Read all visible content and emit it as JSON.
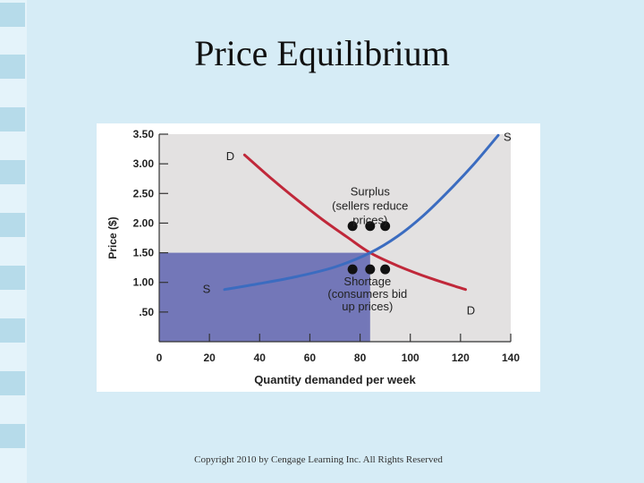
{
  "slide": {
    "title": "Price Equilibrium",
    "copyright": "Copyright 2010 by Cengage Learning Inc. All Rights Reserved"
  },
  "colors": {
    "background": "#d6ecf6",
    "sidebar_tile": "#b6dbea",
    "plot_area": "#e3e1e1",
    "shaded_region": "#7377b8",
    "demand_curve": "#c0283a",
    "supply_curve": "#3b6cc0",
    "dots": "#111111"
  },
  "chart_data": {
    "type": "line",
    "xlabel": "Quantity demanded per week",
    "ylabel": "Price ($)",
    "xlim": [
      0,
      140
    ],
    "ylim": [
      0,
      3.5
    ],
    "x_ticks": [
      0,
      20,
      40,
      60,
      80,
      100,
      120,
      140
    ],
    "x_tick_labels": [
      "0",
      "20",
      "40",
      "60",
      "80",
      "100",
      "120",
      "140"
    ],
    "y_ticks": [
      0.5,
      1.0,
      1.5,
      2.0,
      2.5,
      3.0,
      3.5
    ],
    "y_tick_labels": [
      ".50",
      "1.00",
      "1.50",
      "2.00",
      "2.50",
      "3.00",
      "3.50"
    ],
    "series": [
      {
        "name": "D",
        "color": "#c0283a",
        "points": [
          [
            34,
            3.15
          ],
          [
            45,
            2.74
          ],
          [
            55,
            2.39
          ],
          [
            65,
            2.06
          ],
          [
            75,
            1.76
          ],
          [
            84,
            1.5
          ],
          [
            95,
            1.28
          ],
          [
            108,
            1.07
          ],
          [
            122,
            0.88
          ]
        ],
        "end_labels": [
          "D",
          "D"
        ]
      },
      {
        "name": "S",
        "color": "#3b6cc0",
        "points": [
          [
            26,
            0.88
          ],
          [
            40,
            0.98
          ],
          [
            55,
            1.1
          ],
          [
            70,
            1.26
          ],
          [
            84,
            1.5
          ],
          [
            95,
            1.78
          ],
          [
            105,
            2.12
          ],
          [
            115,
            2.53
          ],
          [
            125,
            2.98
          ],
          [
            135,
            3.48
          ]
        ],
        "end_labels": [
          "S",
          "S"
        ]
      }
    ],
    "equilibrium": {
      "quantity": 84,
      "price": 1.5
    },
    "shaded_region": {
      "x": [
        0,
        84
      ],
      "y": [
        0,
        1.5
      ]
    },
    "surplus_dots": [
      [
        77,
        1.95
      ],
      [
        84,
        1.95
      ],
      [
        90,
        1.95
      ]
    ],
    "shortage_dots": [
      [
        77,
        1.22
      ],
      [
        84,
        1.22
      ],
      [
        90,
        1.22
      ]
    ],
    "annotations": [
      {
        "lines": [
          "Surplus",
          "(sellers reduce",
          "prices)"
        ]
      },
      {
        "lines": [
          "Shortage",
          "(consumers bid",
          "up prices)"
        ]
      }
    ]
  }
}
